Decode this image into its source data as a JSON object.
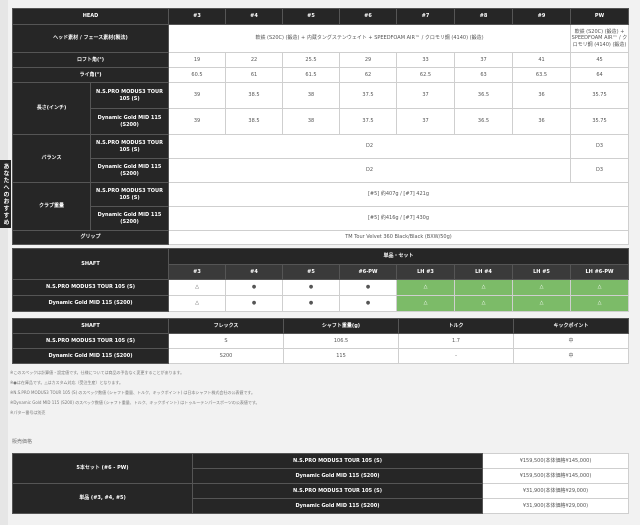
{
  "spec": {
    "header": [
      "HEAD",
      "#3",
      "#4",
      "#5",
      "#6",
      "#7",
      "#8",
      "#9",
      "PW"
    ],
    "material_label": "ヘッド素材 / フェース素材(製法)",
    "material_main": "軟鉄 (S20C) (鍛造) + 内蔵タングステンウェイト + SPEEDFOAM AIR™ / クロモリ鋼 (4140) (鍛造)",
    "material_pw": "軟鉄 (S20C) (鍛造) + SPEEDFOAM AIR™ / クロモリ鋼 (4140) (鍛造)",
    "loft_label": "ロフト角(°)",
    "loft": [
      "19",
      "22",
      "25.5",
      "29",
      "33",
      "37",
      "41",
      "45"
    ],
    "lie_label": "ライ角(°)",
    "lie": [
      "60.5",
      "61",
      "61.5",
      "62",
      "62.5",
      "63",
      "63.5",
      "64"
    ],
    "length_label": "長さ(インチ)",
    "length_rows": [
      {
        "shaft": "N.S.PRO MODUS3 TOUR 105 (S)",
        "values": [
          "39",
          "38.5",
          "38",
          "37.5",
          "37",
          "36.5",
          "36",
          "35.75"
        ]
      },
      {
        "shaft": "Dynamic Gold MID 115 (S200)",
        "values": [
          "39",
          "38.5",
          "38",
          "37.5",
          "37",
          "36.5",
          "36",
          "35.75"
        ]
      }
    ],
    "balance_label": "バランス",
    "balance_rows": [
      {
        "shaft": "N.S.PRO MODUS3 TOUR 105 (S)",
        "main": "D2",
        "pw": "D3"
      },
      {
        "shaft": "Dynamic Gold MID 115 (S200)",
        "main": "D2",
        "pw": "D3"
      }
    ],
    "weight_label": "クラブ重量",
    "weight_rows": [
      {
        "shaft": "N.S.PRO MODUS3 TOUR 105 (S)",
        "value": "[#5] 約407g / [#7] 421g"
      },
      {
        "shaft": "Dynamic Gold MID 115 (S200)",
        "value": "[#5] 約416g / [#7] 430g"
      }
    ],
    "grip_label": "グリップ",
    "grip": "TM Tour Velvet 360 Black/Black (BXW/50g)"
  },
  "tab_label": "あなたへのおすすめ",
  "availability": {
    "shaft_label": "SHAFT",
    "group_label": "単品・セット",
    "cols": [
      "#3",
      "#4",
      "#5",
      "#6-PW",
      "LH #3",
      "LH #4",
      "LH #5",
      "LH #6-PW"
    ],
    "rows": [
      {
        "shaft": "N.S.PRO MODUS3 TOUR 105 (S)",
        "marks": [
          "△",
          "●",
          "●",
          "●",
          "△",
          "△",
          "△",
          "△"
        ]
      },
      {
        "shaft": "Dynamic Gold MID 115 (S200)",
        "marks": [
          "△",
          "●",
          "●",
          "●",
          "△",
          "△",
          "△",
          "△"
        ]
      }
    ]
  },
  "shaft_spec": {
    "header": [
      "SHAFT",
      "フレックス",
      "シャフト重量(g)",
      "トルク",
      "キックポイント"
    ],
    "rows": [
      [
        "N.S.PRO MODUS3 TOUR 105 (S)",
        "S",
        "106.5",
        "1.7",
        "中"
      ],
      [
        "Dynamic Gold MID 115 (S200)",
        "S200",
        "115",
        "-",
        "中"
      ]
    ]
  },
  "notes": [
    "※このスペックは計算値・設定値です。仕様については商品の予告なく変更することがあります。",
    "※●は在庫品です。△はカスタム対応（受注生産）となります。",
    "※N.S.PRO MODUS3 TOUR 105 (S) のスペック数値 (シャフト重量、トルク、キックポイント) は日本シャフト株式会社の公表値です。",
    "※Dynamic Gold MID 115 (S200) のスペック数値 (シャフト重量、トルク、キックポイント) はトゥルーテンパースポーツの公表値です。",
    "※パター番号は別売"
  ],
  "price_section_label": "販売価格",
  "prices": [
    {
      "group": "5本セット (#6 - PW)",
      "rows": [
        {
          "shaft": "N.S.PRO MODUS3 TOUR 105 (S)",
          "price": "¥159,500(本体価格¥145,000)"
        },
        {
          "shaft": "Dynamic Gold MID 115 (S200)",
          "price": "¥159,500(本体価格¥145,000)"
        }
      ]
    },
    {
      "group": "単品 (#3, #4, #5)",
      "rows": [
        {
          "shaft": "N.S.PRO MODUS3 TOUR 105 (S)",
          "price": "¥31,900(本体価格¥29,000)"
        },
        {
          "shaft": "Dynamic Gold MID 115 (S200)",
          "price": "¥31,900(本体価格¥29,000)"
        }
      ]
    }
  ]
}
